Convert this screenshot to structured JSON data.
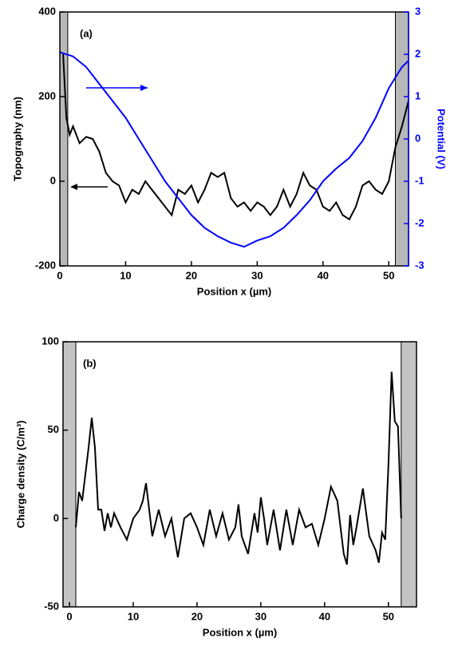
{
  "chart_data": [
    {
      "type": "line",
      "annotation": "(a)",
      "x_label": "Position x (µm)",
      "y_label": "Topography (nm)",
      "y2_label": "Potential (V)",
      "xlim": [
        0,
        53
      ],
      "xticks": [
        0,
        10,
        20,
        30,
        40,
        50
      ],
      "ylim": [
        -200,
        400
      ],
      "yticks": [
        -200,
        0,
        200,
        400
      ],
      "y2lim": [
        -3,
        3
      ],
      "y2ticks": [
        -3,
        -2,
        -1,
        0,
        1,
        2,
        3
      ],
      "y2_color": "#0000ff",
      "shaded_regions": [
        [
          0,
          1.2
        ],
        [
          51,
          53
        ]
      ],
      "shade_color": "#b8b8b8",
      "series": [
        {
          "name": "Topography",
          "color": "#000000",
          "x": [
            0.5,
            1,
            1.5,
            2,
            3,
            4,
            5,
            6,
            7,
            8,
            9,
            10,
            11,
            12,
            13,
            14,
            15,
            16,
            17,
            18,
            19,
            20,
            21,
            22,
            23,
            24,
            25,
            26,
            27,
            28,
            29,
            30,
            31,
            32,
            33,
            34,
            35,
            36,
            37,
            38,
            39,
            40,
            41,
            42,
            43,
            44,
            45,
            46,
            47,
            48,
            49,
            50,
            51,
            52,
            53
          ],
          "values": [
            300,
            150,
            110,
            130,
            90,
            105,
            100,
            70,
            20,
            0,
            -10,
            -50,
            -20,
            -30,
            0,
            -20,
            -40,
            -60,
            -80,
            -20,
            -30,
            -10,
            -50,
            -20,
            20,
            10,
            20,
            -40,
            -60,
            -50,
            -70,
            -50,
            -60,
            -80,
            -60,
            -20,
            -60,
            -30,
            20,
            -10,
            -20,
            -60,
            -70,
            -50,
            -80,
            -90,
            -60,
            -10,
            0,
            -20,
            -30,
            0,
            80,
            130,
            190
          ]
        },
        {
          "name": "Potential",
          "color": "#0000ff",
          "axis": "y2",
          "x": [
            0,
            2,
            4,
            6,
            8,
            10,
            12,
            14,
            16,
            18,
            20,
            22,
            24,
            26,
            28,
            30,
            32,
            34,
            36,
            38,
            40,
            42,
            44,
            46,
            48,
            50,
            52,
            53
          ],
          "values": [
            2.05,
            1.95,
            1.7,
            1.3,
            0.9,
            0.5,
            0.0,
            -0.5,
            -1.0,
            -1.4,
            -1.8,
            -2.1,
            -2.3,
            -2.45,
            -2.55,
            -2.4,
            -2.3,
            -2.1,
            -1.8,
            -1.45,
            -1.0,
            -0.7,
            -0.45,
            -0.05,
            0.5,
            1.2,
            1.7,
            1.85
          ]
        }
      ]
    },
    {
      "type": "line",
      "annotation": "(b)",
      "x_label": "Position x (µm)",
      "y_label": "Charge density (C/m³)",
      "xlim": [
        -1,
        54.4
      ],
      "xticks": [
        0,
        10,
        20,
        30,
        40,
        50
      ],
      "ylim": [
        -50,
        100
      ],
      "yticks": [
        -50,
        0,
        50,
        100
      ],
      "shaded_regions": [
        [
          -1,
          1
        ],
        [
          52,
          54.4
        ]
      ],
      "shade_color": "#c4c4c4",
      "series": [
        {
          "name": "Charge density",
          "color": "#000000",
          "x": [
            1,
            1.5,
            2,
            3,
            3.5,
            4,
            4.5,
            5,
            5.5,
            6,
            6.5,
            7,
            8,
            9,
            10,
            11,
            11.5,
            12,
            12.5,
            13,
            14,
            15,
            16,
            17,
            18,
            19,
            20,
            21,
            22,
            23,
            24,
            25,
            26,
            26.5,
            27,
            28,
            29,
            29.5,
            30,
            30.5,
            31,
            32,
            33,
            34,
            35,
            36,
            37,
            38,
            39,
            40,
            41,
            42,
            43,
            43.5,
            44,
            44.5,
            45,
            46,
            47,
            48,
            48.5,
            49,
            49.5,
            50,
            50.5,
            51,
            51.5,
            52
          ],
          "values": [
            -5,
            15,
            10,
            40,
            57,
            40,
            5,
            5,
            -7,
            3,
            -5,
            3,
            -5,
            -12,
            0,
            5,
            10,
            20,
            5,
            -10,
            5,
            -10,
            0,
            -22,
            0,
            3,
            -5,
            -15,
            5,
            -10,
            3,
            -12,
            -5,
            8,
            -10,
            -20,
            3,
            -8,
            12,
            0,
            -15,
            5,
            -18,
            5,
            -15,
            5,
            -5,
            -3,
            -15,
            0,
            18,
            10,
            -20,
            -26,
            2,
            -15,
            -5,
            17,
            -10,
            -18,
            -25,
            -8,
            -12,
            30,
            83,
            55,
            52,
            0
          ]
        }
      ]
    }
  ]
}
